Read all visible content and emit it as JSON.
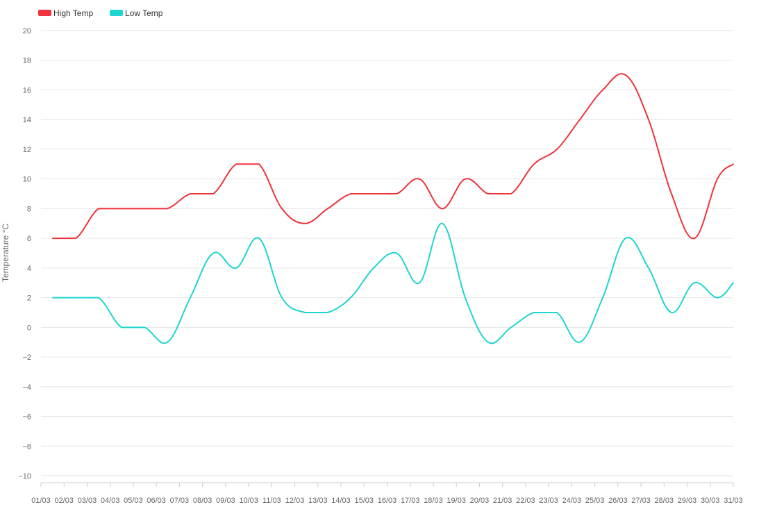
{
  "chart_data": {
    "type": "line",
    "title": "",
    "ylabel": "Temperature °C",
    "ylim": [
      -10,
      20
    ],
    "yticks": [
      -10,
      -8,
      -6,
      -4,
      -2,
      0,
      2,
      4,
      6,
      8,
      10,
      12,
      14,
      16,
      18,
      20
    ],
    "grid": true,
    "legend_position": "top-left",
    "x_tick_labels": [
      "01/03",
      "02/03",
      "03/03",
      "04/03",
      "05/03",
      "06/03",
      "07/03",
      "08/03",
      "09/03",
      "10/03",
      "11/03",
      "12/03",
      "13/03",
      "14/03",
      "15/03",
      "16/03",
      "17/03",
      "18/03",
      "19/03",
      "20/03",
      "21/03",
      "22/03",
      "23/03",
      "24/03",
      "25/03",
      "26/03",
      "27/03",
      "28/03",
      "29/03",
      "30/03",
      "31/03"
    ],
    "categories": [
      "01/03",
      "02/03",
      "03/03",
      "04/03",
      "05/03",
      "06/03",
      "07/03",
      "08/03",
      "09/03",
      "10/03",
      "11/03",
      "12/03",
      "13/03",
      "14/03",
      "15/03",
      "16/03",
      "17/03",
      "18/03",
      "19/03",
      "20/03",
      "21/03",
      "22/03",
      "23/03",
      "24/03",
      "25/03",
      "26/03",
      "27/03",
      "28/03",
      "29/03",
      "30/03",
      "31/03"
    ],
    "series": [
      {
        "name": "High Temp",
        "color": "#f0323c",
        "values": [
          6,
          6,
          8,
          8,
          8,
          8,
          9,
          9,
          11,
          11,
          8,
          7,
          8,
          9,
          9,
          9,
          10,
          8,
          10,
          9,
          9,
          11,
          12,
          14,
          16,
          17,
          14,
          9,
          6,
          10,
          11
        ]
      },
      {
        "name": "Low Temp",
        "color": "#1cd6cf",
        "values": [
          2,
          2,
          2,
          0,
          0,
          -1,
          2,
          5,
          4,
          6,
          2,
          1,
          1,
          2,
          4,
          5,
          3,
          7,
          2,
          -1,
          0,
          1,
          1,
          -1,
          2,
          6,
          4,
          1,
          3,
          2,
          3
        ]
      }
    ]
  }
}
